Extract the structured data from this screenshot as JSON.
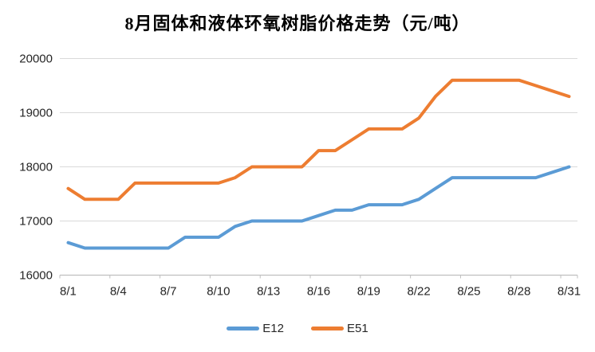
{
  "title": "8月固体和液体环氧树脂价格走势（元/吨）",
  "colors": {
    "background": "#FFFFFF",
    "grid": "#D9D9D9",
    "axis": "#BFBFBF",
    "axis_text": "#262626",
    "title_text": "#000000",
    "series_e12": "#5B9BD5",
    "series_e51": "#ED7D31"
  },
  "chart_data": {
    "type": "line",
    "title": "8月固体和液体环氧树脂价格走势（元/吨）",
    "xlabel": "",
    "ylabel": "",
    "grid": "horizontal",
    "legend_position": "bottom",
    "ylim": [
      16000,
      20000
    ],
    "ytick_step": 1000,
    "y_tick_labels": [
      "16000",
      "17000",
      "18000",
      "19000",
      "20000"
    ],
    "x_tick_labels": [
      "8/1",
      "8/4",
      "8/7",
      "8/10",
      "8/13",
      "8/16",
      "8/19",
      "8/22",
      "8/25",
      "8/28",
      "8/31"
    ],
    "categories": [
      "8/1",
      "8/2",
      "8/3",
      "8/4",
      "8/5",
      "8/6",
      "8/7",
      "8/8",
      "8/9",
      "8/10",
      "8/11",
      "8/12",
      "8/13",
      "8/14",
      "8/15",
      "8/16",
      "8/17",
      "8/18",
      "8/19",
      "8/20",
      "8/21",
      "8/22",
      "8/23",
      "8/24",
      "8/25",
      "8/26",
      "8/27",
      "8/28",
      "8/29",
      "8/30",
      "8/31"
    ],
    "series": [
      {
        "name": "E12",
        "color": "#5B9BD5",
        "values": [
          16600,
          16500,
          16500,
          16500,
          16500,
          16500,
          16500,
          16700,
          16700,
          16700,
          16900,
          17000,
          17000,
          17000,
          17000,
          17100,
          17200,
          17200,
          17300,
          17300,
          17300,
          17400,
          17600,
          17800,
          17800,
          17800,
          17800,
          17800,
          17800,
          17900,
          18000
        ]
      },
      {
        "name": "E51",
        "color": "#ED7D31",
        "values": [
          17600,
          17400,
          17400,
          17400,
          17700,
          17700,
          17700,
          17700,
          17700,
          17700,
          17800,
          18000,
          18000,
          18000,
          18000,
          18300,
          18300,
          18500,
          18700,
          18700,
          18700,
          18900,
          19300,
          19600,
          19600,
          19600,
          19600,
          19600,
          19500,
          19400,
          19300
        ]
      }
    ]
  }
}
